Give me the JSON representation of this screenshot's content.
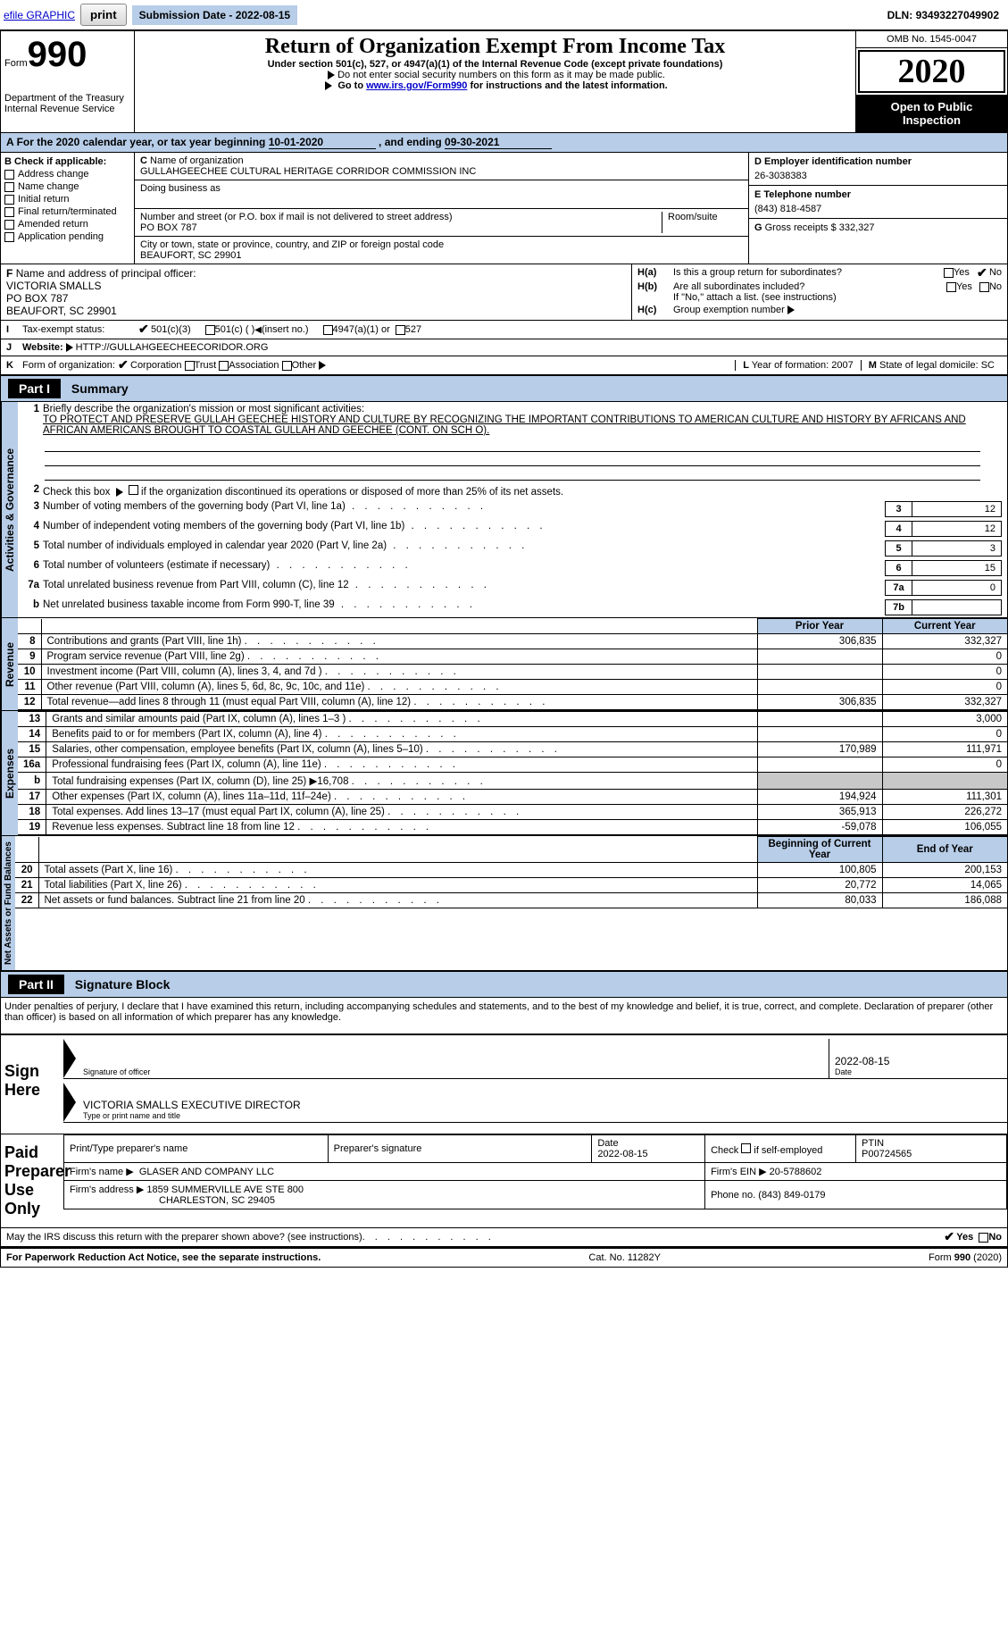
{
  "top": {
    "efile_link": "efile GRAPHIC",
    "print_btn": "print",
    "sub_date_label": "Submission Date - ",
    "sub_date": "2022-08-15",
    "dln_label": "DLN: ",
    "dln": "93493227049902"
  },
  "header": {
    "form_prefix": "Form",
    "form_num": "990",
    "dept1": "Department of the Treasury",
    "dept2": "Internal Revenue Service",
    "title": "Return of Organization Exempt From Income Tax",
    "subtitle": "Under section 501(c), 527, or 4947(a)(1) of the Internal Revenue Code (except private foundations)",
    "note1": "Do not enter social security numbers on this form as it may be made public.",
    "note2_pre": "Go to ",
    "note2_link": "www.irs.gov/Form990",
    "note2_post": " for instructions and the latest information.",
    "omb": "OMB No. 1545-0047",
    "year": "2020",
    "public1": "Open to Public",
    "public2": "Inspection"
  },
  "period": {
    "text_a": "For the 2020 calendar year, or tax year beginning ",
    "begin": "10-01-2020",
    "text_b": " , and ending ",
    "end": "09-30-2021",
    "prefix": "A"
  },
  "sectionB": {
    "label": "B",
    "check_label": "Check if applicable:",
    "items": [
      "Address change",
      "Name change",
      "Initial return",
      "Final return/terminated",
      "Amended return",
      "Application pending"
    ],
    "c_label": "C",
    "name_label": "Name of organization",
    "org_name": "GULLAHGEECHEE CULTURAL HERITAGE CORRIDOR COMMISSION INC",
    "dba_label": "Doing business as",
    "dba": "",
    "addr_label": "Number and street (or P.O. box if mail is not delivered to street address)",
    "room_label": "Room/suite",
    "street": "PO BOX 787",
    "city_label": "City or town, state or province, country, and ZIP or foreign postal code",
    "city": "BEAUFORT, SC  29901",
    "d_label": "D Employer identification number",
    "ein": "26-3038383",
    "e_label": "E Telephone number",
    "phone": "(843) 818-4587",
    "g_label": "G",
    "g_text": "Gross receipts $ ",
    "g_val": "332,327"
  },
  "sectionF": {
    "f_label": "F",
    "f_text": "Name and address of principal officer:",
    "f_name": "VICTORIA SMALLS",
    "f_street": "PO BOX 787",
    "f_city": "BEAUFORT, SC  29901",
    "ha_label": "H(a)",
    "ha_text": "Is this a group return for subordinates?",
    "hb_label": "H(b)",
    "hb_text": "Are all subordinates included?",
    "hb_note": "If \"No,\" attach a list. (see instructions)",
    "hc_label": "H(c)",
    "hc_text": "Group exemption number",
    "yes": "Yes",
    "no": "No"
  },
  "lineI": {
    "i": "I",
    "label": "Tax-exempt status:",
    "o1": "501(c)(3)",
    "o2": "501(c) (  )",
    "o2a": "(insert no.)",
    "o3": "4947(a)(1) or",
    "o4": "527"
  },
  "lineJ": {
    "j": "J",
    "label": "Website:",
    "url": "HTTP://GULLAHGEECHEECORIDOR.ORG"
  },
  "lineK": {
    "k": "K",
    "label": "Form of organization:",
    "o1": "Corporation",
    "o2": "Trust",
    "o3": "Association",
    "o4": "Other",
    "l_label": "L",
    "l_text": "Year of formation: ",
    "l_val": "2007",
    "m_label": "M",
    "m_text": "State of legal domicile: ",
    "m_val": "SC"
  },
  "part1": {
    "header": "Part I",
    "title": "Summary",
    "sec1_label": "Activities & Governance",
    "line1_num": "1",
    "line1_text": "Briefly describe the organization's mission or most significant activities:",
    "mission": "TO PROTECT AND PRESERVE GULLAH GEECHEE HISTORY AND CULTURE BY RECOGNIZING THE IMPORTANT CONTRIBUTIONS TO AMERICAN CULTURE AND HISTORY BY AFRICANS AND AFRICAN AMERICANS BROUGHT TO COASTAL GULLAH AND GEECHEE (CONT. ON SCH O).",
    "line2_num": "2",
    "line2_text": "Check this box ▶      if the organization discontinued its operations or disposed of more than 25% of its net assets.",
    "rows_gov": [
      {
        "n": "3",
        "t": "Number of voting members of the governing body (Part VI, line 1a)",
        "b": "3",
        "v": "12"
      },
      {
        "n": "4",
        "t": "Number of independent voting members of the governing body (Part VI, line 1b)",
        "b": "4",
        "v": "12"
      },
      {
        "n": "5",
        "t": "Total number of individuals employed in calendar year 2020 (Part V, line 2a)",
        "b": "5",
        "v": "3"
      },
      {
        "n": "6",
        "t": "Total number of volunteers (estimate if necessary)",
        "b": "6",
        "v": "15"
      },
      {
        "n": "7a",
        "t": "Total unrelated business revenue from Part VIII, column (C), line 12",
        "b": "7a",
        "v": "0"
      },
      {
        "n": "b",
        "t": "Net unrelated business taxable income from Form 990-T, line 39",
        "b": "7b",
        "v": ""
      }
    ],
    "sec_rev_label": "Revenue",
    "sec_exp_label": "Expenses",
    "sec_net_label": "Net Assets or Fund Balances",
    "col_prior": "Prior Year",
    "col_current": "Current Year",
    "rev_rows": [
      {
        "n": "8",
        "t": "Contributions and grants (Part VIII, line 1h)",
        "p": "306,835",
        "c": "332,327"
      },
      {
        "n": "9",
        "t": "Program service revenue (Part VIII, line 2g)",
        "p": "",
        "c": "0"
      },
      {
        "n": "10",
        "t": "Investment income (Part VIII, column (A), lines 3, 4, and 7d )",
        "p": "",
        "c": "0"
      },
      {
        "n": "11",
        "t": "Other revenue (Part VIII, column (A), lines 5, 6d, 8c, 9c, 10c, and 11e)",
        "p": "",
        "c": "0"
      },
      {
        "n": "12",
        "t": "Total revenue—add lines 8 through 11 (must equal Part VIII, column (A), line 12)",
        "p": "306,835",
        "c": "332,327"
      }
    ],
    "exp_rows": [
      {
        "n": "13",
        "t": "Grants and similar amounts paid (Part IX, column (A), lines 1–3 )",
        "p": "",
        "c": "3,000"
      },
      {
        "n": "14",
        "t": "Benefits paid to or for members (Part IX, column (A), line 4)",
        "p": "",
        "c": "0"
      },
      {
        "n": "15",
        "t": "Salaries, other compensation, employee benefits (Part IX, column (A), lines 5–10)",
        "p": "170,989",
        "c": "111,971"
      },
      {
        "n": "16a",
        "t": "Professional fundraising fees (Part IX, column (A), line 11e)",
        "p": "",
        "c": "0"
      },
      {
        "n": "b",
        "t": "Total fundraising expenses (Part IX, column (D), line 25) ▶16,708",
        "p": "SHADE",
        "c": "SHADE"
      },
      {
        "n": "17",
        "t": "Other expenses (Part IX, column (A), lines 11a–11d, 11f–24e)",
        "p": "194,924",
        "c": "111,301"
      },
      {
        "n": "18",
        "t": "Total expenses. Add lines 13–17 (must equal Part IX, column (A), line 25)",
        "p": "365,913",
        "c": "226,272"
      },
      {
        "n": "19",
        "t": "Revenue less expenses. Subtract line 18 from line 12",
        "p": "-59,078",
        "c": "106,055"
      }
    ],
    "col_begin": "Beginning of Current Year",
    "col_end": "End of Year",
    "net_rows": [
      {
        "n": "20",
        "t": "Total assets (Part X, line 16)",
        "p": "100,805",
        "c": "200,153"
      },
      {
        "n": "21",
        "t": "Total liabilities (Part X, line 26)",
        "p": "20,772",
        "c": "14,065"
      },
      {
        "n": "22",
        "t": "Net assets or fund balances. Subtract line 21 from line 20",
        "p": "80,033",
        "c": "186,088"
      }
    ]
  },
  "part2": {
    "header": "Part II",
    "title": "Signature Block",
    "perjury": "Under penalties of perjury, I declare that I have examined this return, including accompanying schedules and statements, and to the best of my knowledge and belief, it is true, correct, and complete. Declaration of preparer (other than officer) is based on all information of which preparer has any knowledge.",
    "sign_here": "Sign Here",
    "sig_officer_lbl": "Signature of officer",
    "date_lbl": "Date",
    "sig_date": "2022-08-15",
    "officer_name": "VICTORIA SMALLS EXECUTIVE DIRECTOR",
    "name_lbl": "Type or print name and title",
    "paid_label": "Paid Preparer Use Only",
    "pp_name_lbl": "Print/Type preparer's name",
    "pp_sig_lbl": "Preparer's signature",
    "pp_date_lbl": "Date",
    "pp_date": "2022-08-15",
    "pp_check_lbl": "Check      if self-employed",
    "ptin_lbl": "PTIN",
    "ptin": "P00724565",
    "firm_name_lbl": "Firm's name   ▶",
    "firm_name": "GLASER AND COMPANY LLC",
    "firm_ein_lbl": "Firm's EIN ▶",
    "firm_ein": "20-5788602",
    "firm_addr_lbl": "Firm's address ▶",
    "firm_addr": "1859 SUMMERVILLE AVE STE 800",
    "firm_city": "CHARLESTON, SC  29405",
    "phone_lbl": "Phone no. ",
    "phone": "(843) 849-0179",
    "discuss": "May the IRS discuss this return with the preparer shown above? (see instructions)",
    "yes": "Yes",
    "no": "No"
  },
  "footer": {
    "left": "For Paperwork Reduction Act Notice, see the separate instructions.",
    "mid": "Cat. No. 11282Y",
    "right_a": "Form ",
    "right_b": "990",
    "right_c": " (2020)"
  },
  "colors": {
    "blue_bg": "#b7cde8",
    "link": "#0000cc"
  }
}
